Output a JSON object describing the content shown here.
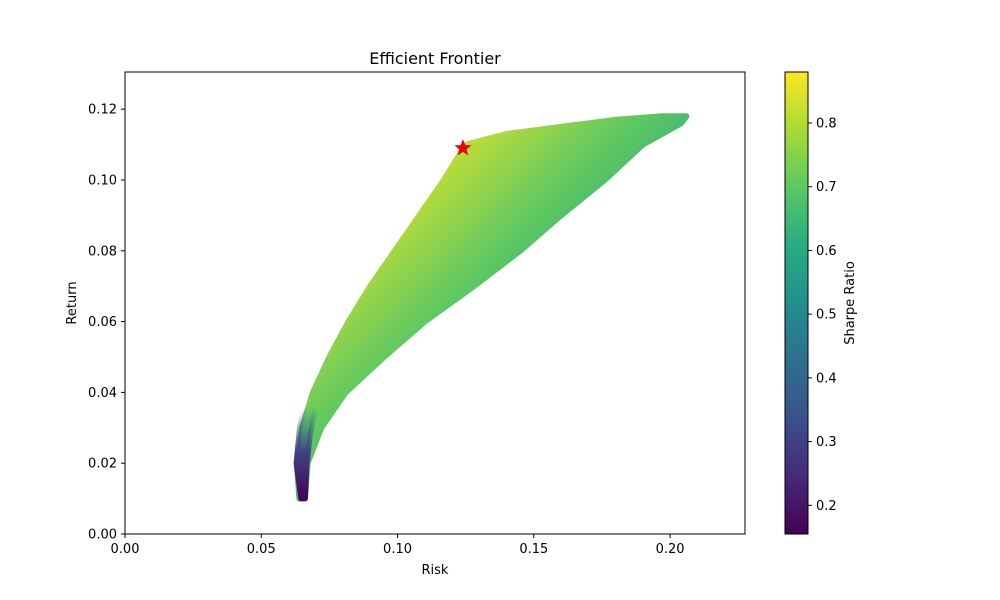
{
  "chart_data": {
    "type": "scatter",
    "title": "Efficient Frontier",
    "xlabel": "Risk",
    "ylabel": "Return",
    "xlim": [
      0.0,
      0.2275
    ],
    "ylim": [
      0.0,
      0.1305
    ],
    "x_ticks": [
      "0.00",
      "0.05",
      "0.10",
      "0.15",
      "0.20"
    ],
    "y_ticks": [
      "0.00",
      "0.02",
      "0.04",
      "0.06",
      "0.08",
      "0.10",
      "0.12"
    ],
    "grid": false,
    "colormap": "viridis",
    "colorbar": {
      "label": "Sharpe Ratio",
      "range": [
        0.155,
        0.88
      ],
      "ticks": [
        "0.2",
        "0.3",
        "0.4",
        "0.5",
        "0.6",
        "0.7",
        "0.8"
      ]
    },
    "frontier_region": {
      "upper_boundary": [
        {
          "x": 0.064,
          "y": 0.01
        },
        {
          "x": 0.063,
          "y": 0.02
        },
        {
          "x": 0.065,
          "y": 0.03
        },
        {
          "x": 0.069,
          "y": 0.04
        },
        {
          "x": 0.075,
          "y": 0.05
        },
        {
          "x": 0.082,
          "y": 0.06
        },
        {
          "x": 0.09,
          "y": 0.07
        },
        {
          "x": 0.099,
          "y": 0.08
        },
        {
          "x": 0.108,
          "y": 0.09
        },
        {
          "x": 0.117,
          "y": 0.1
        },
        {
          "x": 0.125,
          "y": 0.11
        },
        {
          "x": 0.14,
          "y": 0.113
        },
        {
          "x": 0.16,
          "y": 0.115
        },
        {
          "x": 0.18,
          "y": 0.117
        },
        {
          "x": 0.197,
          "y": 0.118
        },
        {
          "x": 0.206,
          "y": 0.118
        }
      ],
      "lower_boundary": [
        {
          "x": 0.066,
          "y": 0.01
        },
        {
          "x": 0.067,
          "y": 0.02
        },
        {
          "x": 0.072,
          "y": 0.03
        },
        {
          "x": 0.081,
          "y": 0.04
        },
        {
          "x": 0.095,
          "y": 0.05
        },
        {
          "x": 0.11,
          "y": 0.06
        },
        {
          "x": 0.128,
          "y": 0.07
        },
        {
          "x": 0.145,
          "y": 0.08
        },
        {
          "x": 0.16,
          "y": 0.09
        },
        {
          "x": 0.176,
          "y": 0.1
        },
        {
          "x": 0.19,
          "y": 0.11
        },
        {
          "x": 0.204,
          "y": 0.116
        }
      ]
    },
    "sharpe_gradient": [
      {
        "pos": 0.0,
        "sharpe": 0.84
      },
      {
        "pos": 0.4,
        "sharpe": 0.7
      },
      {
        "pos": 0.75,
        "sharpe": 0.58
      },
      {
        "pos": 1.0,
        "sharpe": 0.56
      }
    ],
    "max_sharpe_point": {
      "x": 0.124,
      "y": 0.109,
      "marker": "star",
      "color": "#ff0000"
    }
  }
}
